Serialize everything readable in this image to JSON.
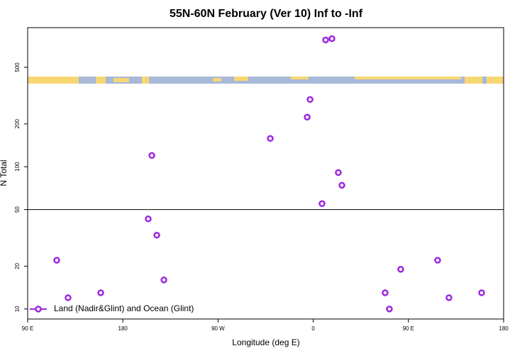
{
  "chart_data": {
    "type": "scatter",
    "title": "55N-60N February (Ver 10)   Inf to -Inf",
    "x_label": "Longitude (deg E)",
    "y_label": "N Total",
    "log_y": true,
    "legend": "bottom-left",
    "reference_line": 50,
    "xlim": [
      90,
      540
    ],
    "xticks": [
      {
        "value": 90,
        "label": "90 E"
      },
      180,
      {
        "value": 270,
        "label": "90 W"
      },
      {
        "value": 360,
        "label": "0"
      },
      {
        "value": 450,
        "label": "90 E"
      },
      {
        "value": 540,
        "label": "180"
      }
    ],
    "ylim": [
      8.5,
      950
    ],
    "yticks": [
      10,
      20,
      50,
      100,
      200,
      500
    ],
    "series": [
      {
        "name": "Land (Nadir&Glint) and Ocean (Glint)",
        "color": "#9b27e0",
        "x": [
          117.5,
          128.2,
          159.1,
          207.4,
          204.0,
          212.1,
          218.8,
          319.4,
          354.3,
          357.0,
          371.7,
          377.7,
          368.3,
          383.7,
          387.1,
          428.0,
          432.0,
          442.7,
          477.6,
          488.3,
          519.2
        ],
        "values": [
          22,
          12,
          13,
          120,
          43,
          33,
          16,
          158,
          223,
          297,
          778,
          795,
          55,
          91,
          74,
          13,
          10,
          19,
          22,
          12,
          13
        ]
      }
    ]
  }
}
